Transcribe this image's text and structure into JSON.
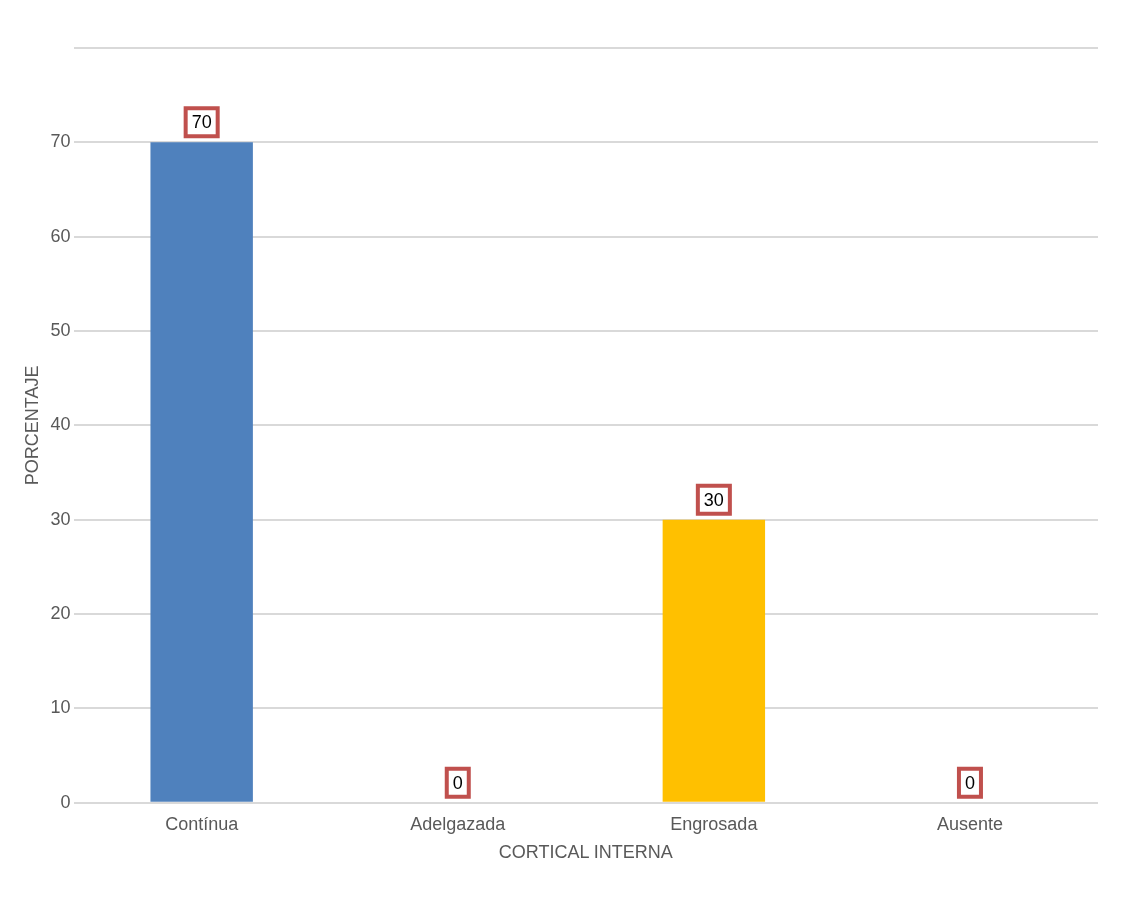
{
  "chart_data": {
    "type": "bar",
    "xlabel": "CORTICAL INTERNA",
    "ylabel": "PORCENTAJE",
    "categories": [
      "Contínua",
      "Adelgazada",
      "Engrosada",
      "Ausente"
    ],
    "values": [
      70,
      0,
      30,
      0
    ],
    "colors": [
      "#4f81bd",
      "#77a03a",
      "#ffc000",
      "#c8c800"
    ],
    "ylim": [
      0,
      80
    ],
    "yticks": [
      0,
      10,
      20,
      30,
      40,
      50,
      60,
      70,
      {
        "value": 80,
        "label": null
      }
    ],
    "grid": "y",
    "legend": false,
    "data_labels": true
  }
}
